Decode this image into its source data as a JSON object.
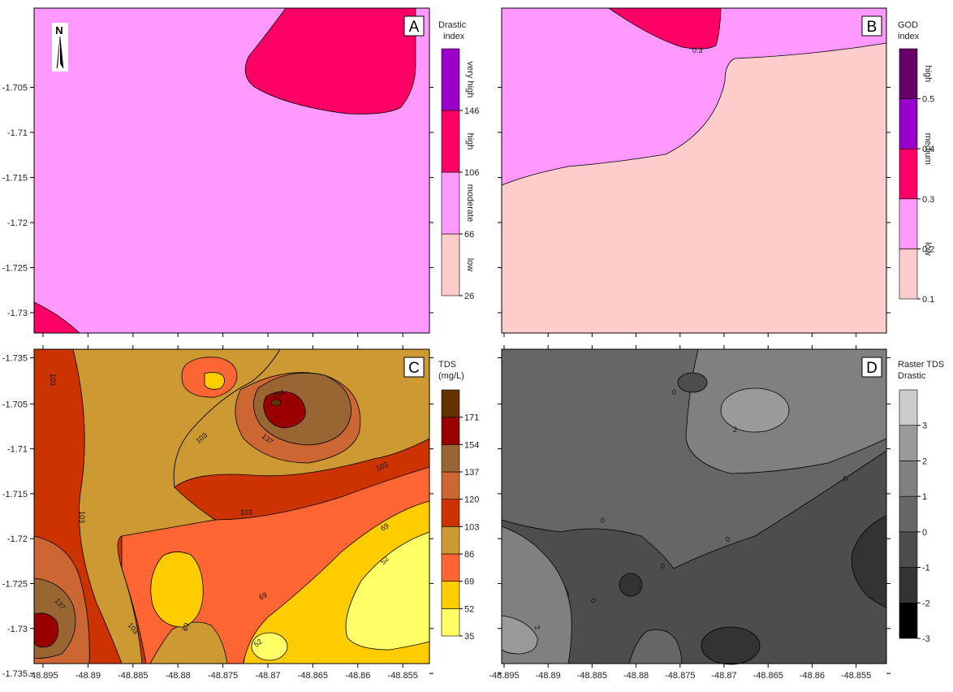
{
  "chart_data": [
    {
      "id": "A",
      "type": "heatmap",
      "panel_label": "A",
      "colorbar_title": [
        "Drastic",
        "index"
      ],
      "colorbar_ticks": [
        "26",
        "66",
        "106",
        "146"
      ],
      "classes": [
        {
          "label": "low",
          "range": [
            26,
            66
          ],
          "color": "#ffcccc"
        },
        {
          "label": "moderate",
          "range": [
            66,
            106
          ],
          "color": "#ff99ff"
        },
        {
          "label": "high",
          "range": [
            106,
            146
          ],
          "color": "#ff0066"
        },
        {
          "label": "very high",
          "range": [
            146,
            186
          ],
          "color": "#9900cc"
        }
      ],
      "north_label": "N",
      "y_ticks": [
        "-1.705",
        "-1.71",
        "-1.715",
        "-1.72",
        "-1.725",
        "-1.73",
        "-1.735"
      ],
      "x_ticks": []
    },
    {
      "id": "B",
      "type": "heatmap",
      "panel_label": "B",
      "colorbar_title": [
        "GOD",
        "index"
      ],
      "colorbar_ticks": [
        "0.1",
        "0.2",
        "0.3",
        "0.4",
        "0.5"
      ],
      "classes": [
        {
          "label": "low",
          "range": [
            0.1,
            0.3
          ],
          "color": "#ffcccc"
        },
        {
          "label": "medium",
          "range": [
            0.3,
            0.5
          ],
          "color": "#ff0066"
        },
        {
          "label": "high",
          "range": [
            0.5,
            0.6
          ],
          "color": "#660066"
        }
      ],
      "contour_labels": [
        "0.3"
      ],
      "y_ticks": [],
      "x_ticks": []
    },
    {
      "id": "C",
      "type": "heatmap",
      "panel_label": "C",
      "colorbar_title": [
        "TDS",
        "(mg/L)"
      ],
      "colorbar_ticks": [
        "35",
        "52",
        "69",
        "86",
        "103",
        "120",
        "137",
        "154",
        "171"
      ],
      "contour_labels": [
        "103",
        "103",
        "103",
        "103",
        "103",
        "103",
        "154",
        "137",
        "137",
        "69",
        "69",
        "69",
        "52",
        "52"
      ],
      "y_ticks": [
        "-1.705",
        "-1.71",
        "-1.715",
        "-1.72",
        "-1.725",
        "-1.73",
        "-1.735"
      ],
      "x_ticks": [
        "-48.895",
        "-48.89",
        "-48.885",
        "-48.88",
        "-48.875",
        "-48.87",
        "-48.865",
        "-48.86",
        "-48.855"
      ]
    },
    {
      "id": "D",
      "type": "heatmap",
      "panel_label": "D",
      "colorbar_title": [
        "Raster TDS",
        "Drastic"
      ],
      "colorbar_ticks": [
        "-3",
        "-2",
        "-1",
        "0",
        "1",
        "2",
        "3"
      ],
      "contour_labels": [
        "0",
        "2",
        "0",
        "0",
        "0",
        "0",
        "0",
        "2"
      ],
      "y_ticks": [],
      "x_ticks": [
        "-48.895",
        "-48.89",
        "-48.885",
        "-48.88",
        "-48.875",
        "-48.87",
        "-48.865",
        "-48.86",
        "-48.855"
      ]
    }
  ],
  "colors": {
    "A": {
      "low": "#ffcccc",
      "moderate": "#ff99ff",
      "high": "#ff0066",
      "very_high": "#9900cc"
    },
    "B": {
      "b1": "#ffcccc",
      "b2": "#ff99ff",
      "b3": "#ff0066",
      "b4": "#9900cc",
      "b5": "#660066"
    },
    "C": {
      "c35": "#ffff66",
      "c52": "#ffcc00",
      "c69": "#ff6633",
      "c86": "#cc9933",
      "c103": "#cc3300",
      "c120": "#cc6633",
      "c137": "#996633",
      "c154": "#990000",
      "c171": "#663300"
    },
    "D": {
      "dm3": "#000000",
      "dm2": "#333333",
      "dm1": "#4d4d4d",
      "d0": "#666666",
      "d1": "#808080",
      "d2": "#9a9a9a",
      "d3": "#cccccc"
    }
  }
}
